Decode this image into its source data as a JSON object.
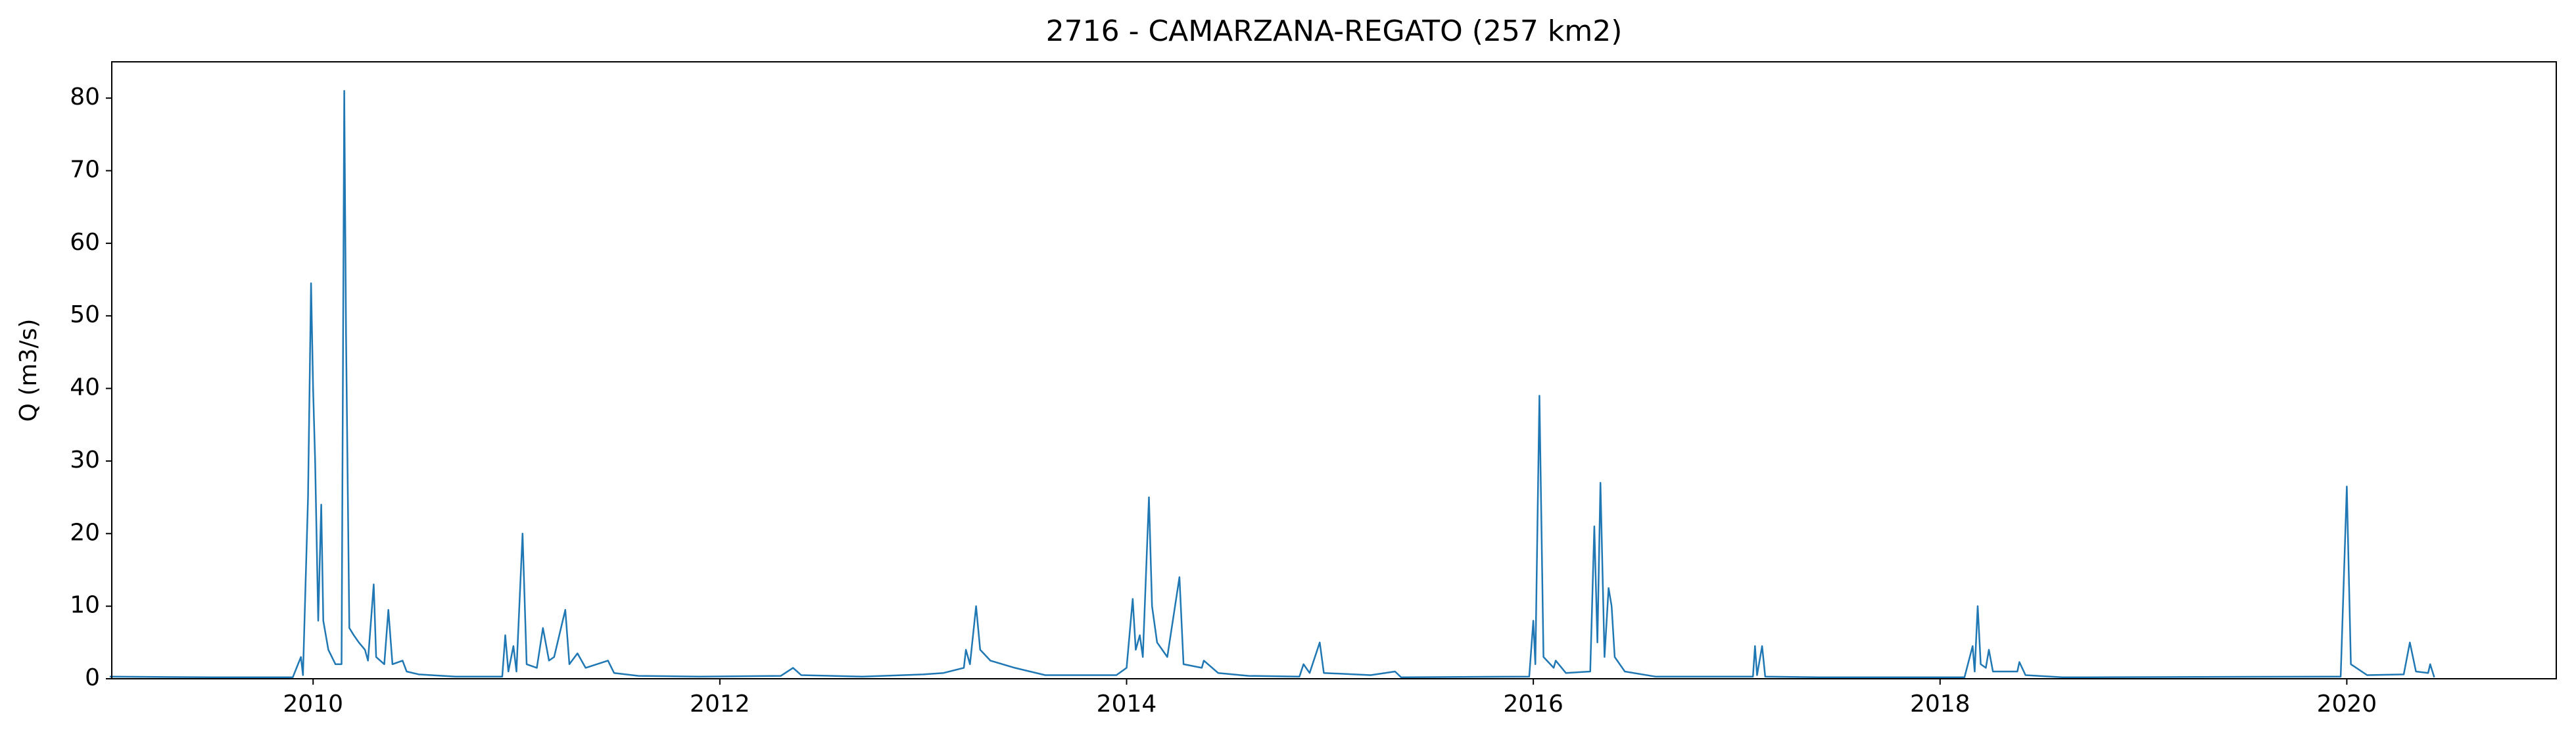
{
  "chart_data": {
    "type": "line",
    "title": "2716 - CAMARZANA-REGATO (257 km2)",
    "y_label": "Q (m3/s)",
    "color": "#1f77b4",
    "x": [
      2009.0,
      2009.5,
      2009.9,
      2009.94,
      2009.95,
      2009.975,
      2009.99,
      2010.0,
      2010.01,
      2010.025,
      2010.04,
      2010.05,
      2010.075,
      2010.11,
      2010.14,
      2010.153,
      2010.162,
      2010.178,
      2010.2,
      2010.225,
      2010.255,
      2010.27,
      2010.298,
      2010.31,
      2010.35,
      2010.37,
      2010.39,
      2010.44,
      2010.46,
      2010.52,
      2010.7,
      2010.93,
      2010.945,
      2010.96,
      2010.985,
      2011.0,
      2011.03,
      2011.05,
      2011.1,
      2011.13,
      2011.16,
      2011.185,
      2011.24,
      2011.26,
      2011.3,
      2011.34,
      2011.45,
      2011.48,
      2011.6,
      2011.9,
      2012.3,
      2012.36,
      2012.4,
      2012.7,
      2013.0,
      2013.1,
      2013.2,
      2013.21,
      2013.23,
      2013.26,
      2013.28,
      2013.33,
      2013.45,
      2013.6,
      2013.95,
      2014.0,
      2014.03,
      2014.045,
      2014.065,
      2014.08,
      2014.11,
      2014.125,
      2014.15,
      2014.2,
      2014.26,
      2014.28,
      2014.37,
      2014.38,
      2014.45,
      2014.6,
      2014.85,
      2014.87,
      2014.9,
      2014.95,
      2014.97,
      2015.2,
      2015.32,
      2015.35,
      2015.98,
      2016.0,
      2016.01,
      2016.03,
      2016.05,
      2016.1,
      2016.11,
      2016.16,
      2016.28,
      2016.3,
      2016.315,
      2016.33,
      2016.35,
      2016.37,
      2016.385,
      2016.4,
      2016.45,
      2016.6,
      2017.08,
      2017.09,
      2017.1,
      2017.125,
      2017.14,
      2017.4,
      2018.12,
      2018.16,
      2018.17,
      2018.185,
      2018.2,
      2018.225,
      2018.24,
      2018.26,
      2018.38,
      2018.39,
      2018.42,
      2018.6,
      2019.97,
      2020.0,
      2020.02,
      2020.1,
      2020.28,
      2020.31,
      2020.34,
      2020.4,
      2020.41,
      2020.43
    ],
    "values": [
      0.3,
      0.2,
      0.2,
      3,
      0.5,
      25,
      54.5,
      40,
      30,
      8,
      24,
      8,
      4,
      2,
      2,
      81,
      47.5,
      7,
      6,
      5,
      4,
      2.5,
      13,
      3,
      2,
      9.5,
      2,
      2.5,
      1,
      0.6,
      0.3,
      0.3,
      6,
      1,
      4.5,
      1,
      20,
      2,
      1.5,
      7,
      2.5,
      3,
      9.5,
      2,
      3.5,
      1.5,
      2.5,
      0.8,
      0.4,
      0.3,
      0.4,
      1.5,
      0.5,
      0.3,
      0.6,
      0.8,
      1.5,
      4,
      2,
      10,
      4,
      2.5,
      1.5,
      0.5,
      0.5,
      1.5,
      11,
      4,
      6,
      3,
      25,
      10,
      5,
      3,
      14,
      2,
      1.5,
      2.5,
      0.8,
      0.4,
      0.3,
      2,
      0.8,
      5,
      0.8,
      0.5,
      1,
      0.2,
      0.3,
      8,
      2,
      39,
      3,
      1.5,
      2.5,
      0.8,
      1,
      21,
      5,
      27,
      3,
      12.5,
      10,
      3,
      1,
      0.3,
      0.3,
      4.5,
      0.5,
      4.5,
      0.3,
      0.2,
      0.2,
      4.5,
      1,
      10,
      2,
      1.5,
      4,
      1,
      1,
      2.3,
      0.5,
      0.2,
      0.3,
      26.5,
      2,
      0.5,
      0.6,
      5,
      1,
      0.8,
      2,
      0.2
    ],
    "xlim": [
      2009.01,
      2021.03
    ],
    "xticks": [
      2010,
      2012,
      2014,
      2016,
      2018,
      2020
    ],
    "ylim": [
      0,
      85
    ],
    "yticks": [
      0,
      10,
      20,
      30,
      40,
      50,
      60,
      70,
      80
    ]
  }
}
